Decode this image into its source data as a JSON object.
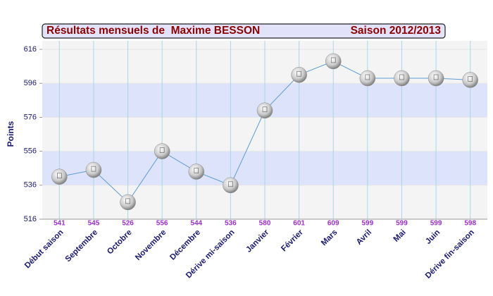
{
  "chart_data": {
    "type": "line",
    "title": "Résultats mensuels de  Maxime BESSON",
    "subtitle": "Saison 2012/2013",
    "y_label": "Points",
    "categories": [
      "Début saison",
      "Septembre",
      "Octobre",
      "Novembre",
      "Décembre",
      "Dérive mi-saison",
      "Janvier",
      "Février",
      "Mars",
      "Avril",
      "Mai",
      "Juin",
      "Dérive fin-saison"
    ],
    "series": [
      {
        "color": "#5b9bd5",
        "values": [
          541,
          545,
          526,
          556,
          544,
          536,
          580,
          601,
          609,
          599,
          599,
          599,
          598
        ]
      }
    ],
    "ylim": [
      516,
      621
    ],
    "yticks": [
      516,
      536,
      556,
      576,
      596,
      616
    ],
    "grid": true
  }
}
